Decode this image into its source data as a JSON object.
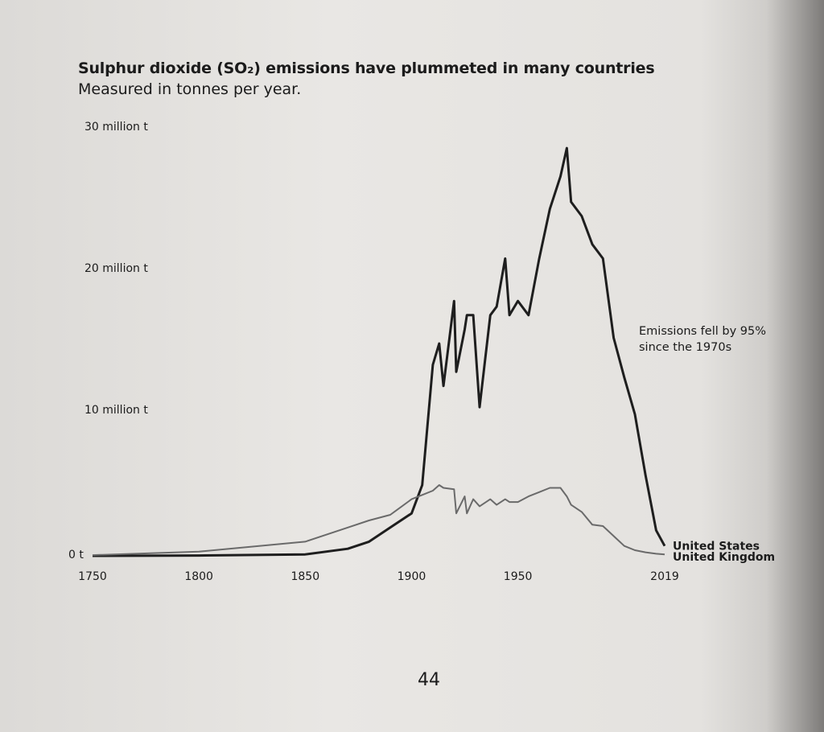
{
  "chart_data": {
    "type": "line",
    "title": "Sulphur dioxide (SO₂) emissions have plummeted in many countries",
    "subtitle": "Measured in tonnes per year.",
    "annotation": "Emissions fell by 95% since the 1970s",
    "page_number": "44",
    "x": [
      1750,
      1800,
      1850,
      1870,
      1880,
      1890,
      1900,
      1905,
      1910,
      1913,
      1915,
      1920,
      1921,
      1925,
      1926,
      1929,
      1932,
      1937,
      1940,
      1944,
      1946,
      1950,
      1955,
      1960,
      1965,
      1970,
      1973,
      1975,
      1980,
      1985,
      1990,
      1995,
      2000,
      2005,
      2010,
      2015,
      2019
    ],
    "series": [
      {
        "name": "United States",
        "color": "#1e1e1e",
        "values": [
          0,
          20000,
          100000,
          500000,
          1000000,
          2000000,
          3000000,
          5000000,
          13500000,
          15000000,
          12000000,
          18000000,
          13000000,
          16000000,
          17000000,
          17000000,
          10500000,
          17000000,
          17600000,
          21000000,
          17000000,
          18000000,
          17000000,
          21000000,
          24500000,
          26800000,
          28800000,
          25000000,
          24000000,
          22000000,
          21000000,
          15400000,
          12600000,
          10000000,
          5700000,
          1800000,
          700000
        ]
      },
      {
        "name": "United Kingdom",
        "color": "#6a6a6a",
        "values": [
          50000,
          300000,
          1000000,
          2000000,
          2500000,
          2900000,
          4000000,
          4300000,
          4600000,
          5000000,
          4800000,
          4700000,
          3000000,
          4200000,
          3000000,
          4000000,
          3500000,
          4000000,
          3600000,
          4000000,
          3800000,
          3800000,
          4200000,
          4500000,
          4800000,
          4800000,
          4200000,
          3600000,
          3100000,
          2200000,
          2100000,
          1400000,
          700000,
          400000,
          250000,
          150000,
          100000
        ]
      }
    ],
    "xlim": [
      1750,
      2019
    ],
    "xticks": [
      1750,
      1800,
      1850,
      1900,
      1950,
      2019
    ],
    "ylim": [
      0,
      30000000
    ],
    "yticks": [
      {
        "value": 0,
        "label": "0 t"
      },
      {
        "value": 10000000,
        "label": "10 million t"
      },
      {
        "value": 20000000,
        "label": "20 million t"
      },
      {
        "value": 30000000,
        "label": "30 million t"
      }
    ],
    "grid": false
  }
}
